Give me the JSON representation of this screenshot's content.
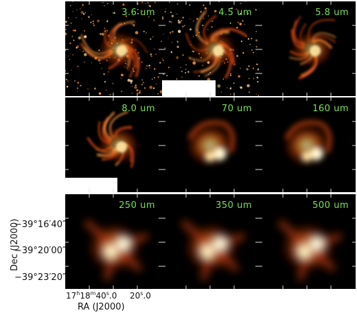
{
  "figure": {
    "panels": [
      {
        "band": "3.6 um",
        "style": "stars",
        "mask": false
      },
      {
        "band": "4.5 um",
        "style": "stars",
        "mask": true
      },
      {
        "band": "5.8 um",
        "style": "neb",
        "mask": false
      },
      {
        "band": "8.0 um",
        "style": "neb",
        "mask": true
      },
      {
        "band": "70 um",
        "style": "far",
        "mask": false
      },
      {
        "band": "160 um",
        "style": "far",
        "mask": false
      },
      {
        "band": "250 um",
        "style": "sub",
        "mask": false
      },
      {
        "band": "350 um",
        "style": "sub",
        "mask": false
      },
      {
        "band": "500 um",
        "style": "sub",
        "mask": false
      }
    ],
    "y_axis": {
      "title": "Dec (J2000)",
      "ticks": [
        "−39°16′40″",
        "−39°20′00″",
        "−39°23′20″"
      ]
    },
    "x_axis": {
      "title": "RA (J2000)",
      "tick_1": {
        "h": "17",
        "m": "18",
        "s": "40",
        "frac": ".0"
      },
      "tick_2": {
        "s": "20",
        "frac": ".0"
      }
    }
  }
}
